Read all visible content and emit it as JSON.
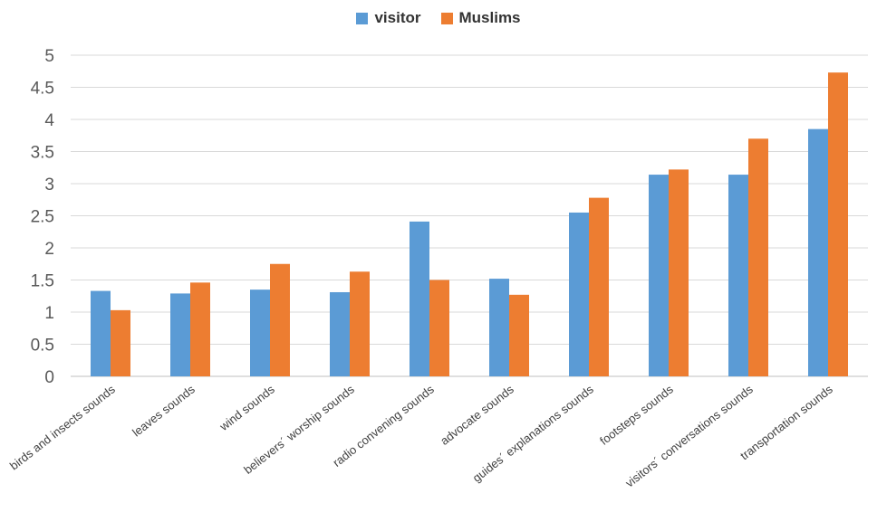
{
  "chart_data": {
    "type": "bar",
    "title": "",
    "xlabel": "",
    "ylabel": "",
    "ylim": [
      0,
      5
    ],
    "yticks": [
      "0",
      "0.5",
      "1",
      "1.5",
      "2",
      "2.5",
      "3",
      "3.5",
      "4",
      "4.5",
      "5"
    ],
    "grid": true,
    "legend_position": "top-center",
    "categories": [
      "birds and insects sounds",
      "leaves sounds",
      "wind sounds",
      "believers´ worship sounds",
      "radio convening sounds",
      "advocate sounds",
      "guides´ explanations sounds",
      "footsteps sounds",
      "visitors´ conversations sounds",
      "transportation sounds"
    ],
    "series": [
      {
        "name": "visitor",
        "color": "#5B9BD5",
        "values": [
          1.33,
          1.29,
          1.35,
          1.31,
          2.41,
          1.52,
          2.55,
          3.14,
          3.14,
          3.85
        ]
      },
      {
        "name": "Muslims",
        "color": "#ED7D31",
        "values": [
          1.03,
          1.46,
          1.75,
          1.63,
          1.5,
          1.27,
          2.78,
          3.22,
          3.7,
          4.73
        ]
      }
    ]
  }
}
